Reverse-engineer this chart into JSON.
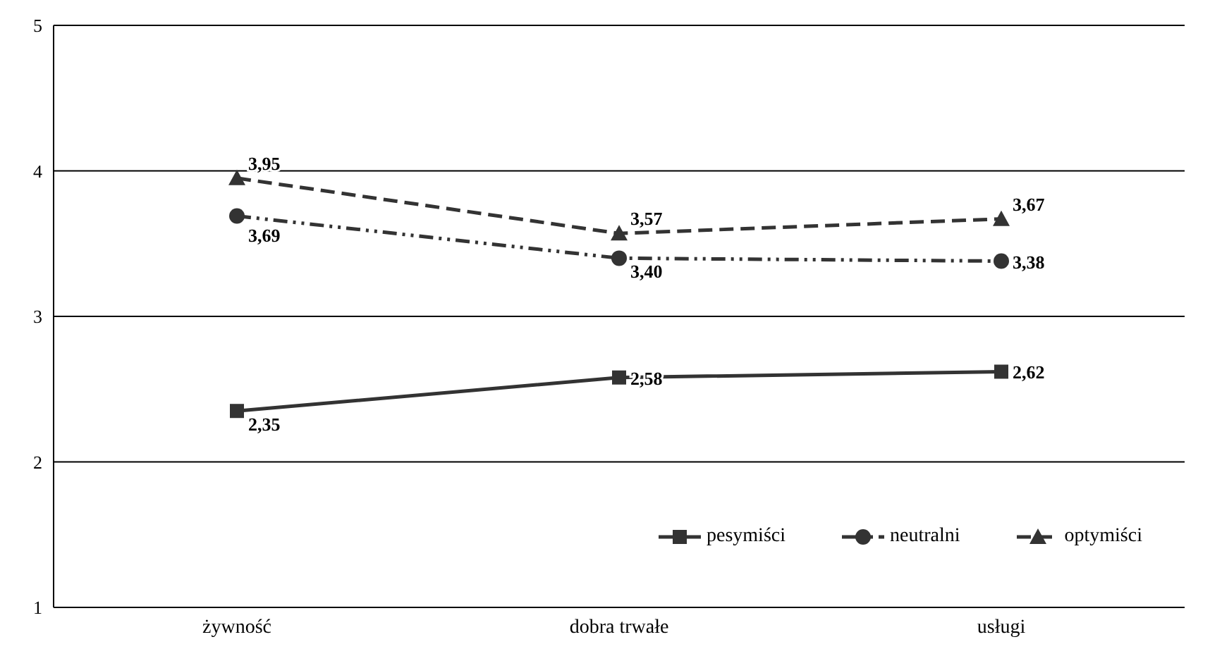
{
  "chart_data": {
    "type": "line",
    "categories": [
      "żywność",
      "dobra trwałe",
      "usługi"
    ],
    "ylim": [
      1,
      5
    ],
    "yticks": [
      1,
      2,
      3,
      4,
      5
    ],
    "grid": "y",
    "legend": "bottom right",
    "series": [
      {
        "name": "pesymiści",
        "color": "#333333",
        "marker": "square",
        "line_style": "solid",
        "values": [
          2.35,
          2.58,
          2.62
        ],
        "value_labels": [
          "2,35",
          "2,58",
          "2,62"
        ]
      },
      {
        "name": "neutralni",
        "color": "#333333",
        "marker": "circle",
        "line_style": "dashdotdot",
        "values": [
          3.69,
          3.4,
          3.38
        ],
        "value_labels": [
          "3,69",
          "3,40",
          "3,38"
        ]
      },
      {
        "name": "optymiści",
        "color": "#333333",
        "marker": "triangle",
        "line_style": "dashed",
        "values": [
          3.95,
          3.57,
          3.67
        ],
        "value_labels": [
          "3,95",
          "3,57",
          "3,67"
        ]
      }
    ]
  }
}
